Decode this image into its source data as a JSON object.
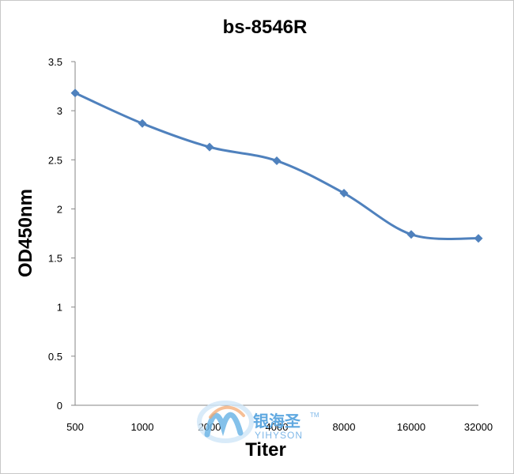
{
  "chart_data": {
    "type": "line",
    "title": "bs-8546R",
    "xlabel": "Titer",
    "ylabel": "OD450nm",
    "categories": [
      "500",
      "1000",
      "2000",
      "4000",
      "8000",
      "16000",
      "32000"
    ],
    "series": [
      {
        "values": [
          3.18,
          2.87,
          2.63,
          2.49,
          2.16,
          1.74,
          1.7
        ]
      }
    ],
    "ylim": [
      0,
      3.5
    ],
    "yticks": [
      "0",
      "0.5",
      "1",
      "1.5",
      "2",
      "2.5",
      "3",
      "3.5"
    ],
    "grid": false,
    "legend": "none",
    "line_color": "#4f81bd"
  },
  "watermark": {
    "cn_text": "银海圣",
    "en_text": "YIHYSON",
    "tm": "TM"
  }
}
